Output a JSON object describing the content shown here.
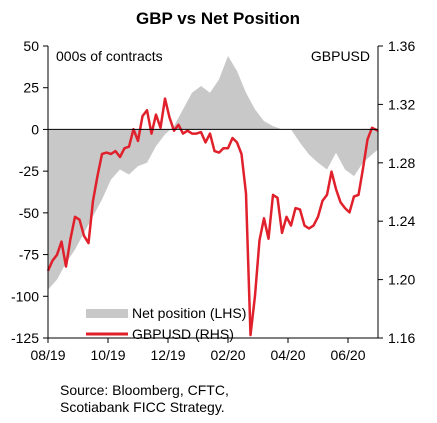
{
  "chart_data": {
    "type": "line",
    "title": "GBP vs Net Position",
    "left_axis_unit": "000s of contracts",
    "right_axis_unit": "GBPUSD",
    "left_ylim": [
      -125,
      50
    ],
    "right_ylim": [
      1.16,
      1.36
    ],
    "left_ticks": [
      50,
      25,
      0,
      -25,
      -50,
      -75,
      -100,
      -125
    ],
    "left_tick_labels": [
      "50",
      "25",
      "0",
      "-25",
      "-50",
      "-75",
      "-100",
      "-125"
    ],
    "right_ticks": [
      1.36,
      1.32,
      1.28,
      1.24,
      1.2,
      1.16
    ],
    "right_tick_labels": [
      "1.36",
      "1.32",
      "1.28",
      "1.24",
      "1.20",
      "1.16"
    ],
    "x_tick_labels": [
      "08/19",
      "10/19",
      "12/19",
      "02/20",
      "04/20",
      "06/20"
    ],
    "x_tick_positions": [
      0,
      2,
      4,
      6,
      8,
      10
    ],
    "x_range": [
      0,
      11
    ],
    "grid": false,
    "legend_position": "bottom-right",
    "series": [
      {
        "name": "Net position (LHS)",
        "axis": "left",
        "style": "area",
        "color": "#c8c8c8",
        "x": [
          0,
          0.3,
          0.6,
          0.9,
          1.2,
          1.5,
          1.8,
          2.1,
          2.4,
          2.7,
          3.0,
          3.3,
          3.6,
          3.9,
          4.2,
          4.5,
          4.8,
          5.1,
          5.4,
          5.7,
          6.0,
          6.3,
          6.6,
          6.9,
          7.2,
          7.5,
          7.8,
          8.1,
          8.4,
          8.7,
          9.0,
          9.3,
          9.6,
          9.9,
          10.2,
          10.5,
          10.8,
          11.0
        ],
        "y": [
          -96,
          -90,
          -80,
          -72,
          -62,
          -52,
          -42,
          -30,
          -24,
          -27,
          -22,
          -20,
          -10,
          -3,
          2,
          12,
          22,
          26,
          22,
          30,
          44,
          35,
          22,
          12,
          5,
          2,
          0,
          0,
          -8,
          -15,
          -20,
          -24,
          -14,
          -24,
          -28,
          -20,
          -15,
          -12
        ]
      },
      {
        "name": "GBPUSD (RHS)",
        "axis": "right",
        "style": "line",
        "color": "#e0202b",
        "x": [
          0,
          0.15,
          0.3,
          0.45,
          0.6,
          0.75,
          0.9,
          1.05,
          1.2,
          1.35,
          1.5,
          1.65,
          1.8,
          1.95,
          2.1,
          2.25,
          2.4,
          2.55,
          2.7,
          2.85,
          3.0,
          3.15,
          3.3,
          3.45,
          3.6,
          3.75,
          3.9,
          4.05,
          4.2,
          4.35,
          4.5,
          4.65,
          4.8,
          4.95,
          5.1,
          5.25,
          5.4,
          5.55,
          5.7,
          5.85,
          6.0,
          6.15,
          6.3,
          6.45,
          6.6,
          6.75,
          6.9,
          7.05,
          7.2,
          7.35,
          7.5,
          7.65,
          7.8,
          7.95,
          8.1,
          8.25,
          8.4,
          8.55,
          8.7,
          8.85,
          9.0,
          9.15,
          9.3,
          9.45,
          9.6,
          9.75,
          9.9,
          10.05,
          10.2,
          10.35,
          10.5,
          10.65,
          10.8,
          11.0
        ],
        "y": [
          1.206,
          1.213,
          1.217,
          1.226,
          1.209,
          1.228,
          1.243,
          1.241,
          1.23,
          1.225,
          1.254,
          1.271,
          1.286,
          1.287,
          1.286,
          1.288,
          1.284,
          1.29,
          1.291,
          1.303,
          1.295,
          1.312,
          1.316,
          1.3,
          1.313,
          1.304,
          1.324,
          1.311,
          1.302,
          1.306,
          1.3,
          1.302,
          1.3,
          1.3,
          1.301,
          1.294,
          1.3,
          1.288,
          1.287,
          1.29,
          1.29,
          1.297,
          1.294,
          1.286,
          1.259,
          1.162,
          1.189,
          1.227,
          1.242,
          1.228,
          1.258,
          1.256,
          1.232,
          1.243,
          1.237,
          1.249,
          1.248,
          1.237,
          1.235,
          1.237,
          1.243,
          1.254,
          1.258,
          1.274,
          1.262,
          1.253,
          1.249,
          1.246,
          1.257,
          1.258,
          1.276,
          1.296,
          1.304,
          1.302
        ]
      }
    ],
    "source_lines": [
      "Source: Bloomberg, CFTC,",
      "Scotiabank FICC Strategy."
    ]
  }
}
